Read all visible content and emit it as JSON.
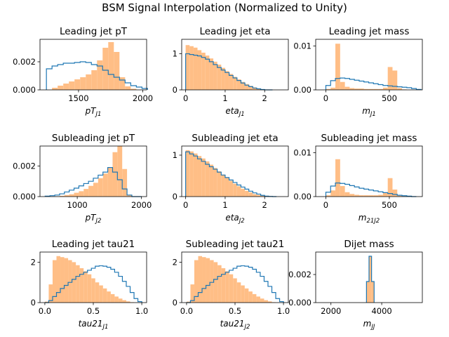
{
  "figure_title": "BSM Signal Interpolation (Normalized to Unity)",
  "colors": {
    "hist_fill": "#ffbe86",
    "step_line": "#1f77b4",
    "axis": "#000000"
  },
  "chart_data": [
    {
      "type": "histogram",
      "title": "Leading jet pT",
      "xlabel": "pT_J1",
      "xlim": [
        1200,
        2030
      ],
      "ylim": [
        0,
        0.0036
      ],
      "xticks": [
        1500,
        2000
      ],
      "yticks": [
        0,
        0.002
      ],
      "ytick_labels": [
        "0.000",
        "0.002"
      ],
      "bins": [
        1250,
        1293.75,
        1337.5,
        1381.25,
        1425,
        1468.75,
        1512.5,
        1556.25,
        1600,
        1643.75,
        1687.5,
        1731.25,
        1775,
        1818.75,
        1862.5,
        1906.25,
        1950,
        1993.75,
        2037.5
      ],
      "filled_values": [
        0.0,
        0.00015,
        0.0003,
        0.00045,
        0.0006,
        0.00075,
        0.0009,
        0.0011,
        0.0014,
        0.0021,
        0.003,
        0.0034,
        0.0027,
        0.0009,
        0.00025,
        8e-05,
        0.0,
        0.0
      ],
      "step_values": [
        0.0015,
        0.0017,
        0.0018,
        0.0019,
        0.0019,
        0.00195,
        0.002,
        0.00195,
        0.0018,
        0.0017,
        0.0014,
        0.0011,
        0.0009,
        0.0007,
        0.0005,
        0.0003,
        0.0002,
        0.0001
      ]
    },
    {
      "type": "histogram",
      "title": "Leading jet eta",
      "xlabel": "eta_J1",
      "xlim": [
        -0.1,
        2.6
      ],
      "ylim": [
        0,
        1.4
      ],
      "xticks": [
        0,
        1,
        2
      ],
      "yticks": [
        0,
        1
      ],
      "ytick_labels": [
        "0",
        "1"
      ],
      "bins": [
        0.0,
        0.1,
        0.2,
        0.3,
        0.4,
        0.5,
        0.6,
        0.7,
        0.8,
        0.9,
        1.0,
        1.1,
        1.2,
        1.3,
        1.4,
        1.5,
        1.6,
        1.7,
        1.8,
        1.9,
        2.0,
        2.1,
        2.2
      ],
      "filled_values": [
        1.24,
        1.21,
        1.17,
        1.1,
        1.03,
        0.95,
        0.87,
        0.78,
        0.7,
        0.61,
        0.52,
        0.44,
        0.36,
        0.29,
        0.22,
        0.16,
        0.11,
        0.07,
        0.04,
        0.02,
        0.01,
        0.0
      ],
      "step_values": [
        1.0,
        0.98,
        0.96,
        0.94,
        0.9,
        0.85,
        0.78,
        0.7,
        0.62,
        0.55,
        0.48,
        0.4,
        0.33,
        0.26,
        0.19,
        0.13,
        0.09,
        0.05,
        0.03,
        0.01,
        0.0,
        0.0
      ]
    },
    {
      "type": "histogram",
      "title": "Leading jet mass",
      "xlabel": "m_J1",
      "xlim": [
        -80,
        760
      ],
      "ylim": [
        0,
        0.0115
      ],
      "xticks": [
        0,
        500
      ],
      "yticks": [
        0,
        0.01
      ],
      "ytick_labels": [
        "0.00",
        "0.01"
      ],
      "bins": [
        0,
        37.5,
        75,
        112.5,
        150,
        187.5,
        225,
        262.5,
        300,
        337.5,
        375,
        412.5,
        450,
        487.5,
        525,
        562.5,
        600,
        637.5,
        675,
        712.5,
        750
      ],
      "filled_values": [
        0.0002,
        0.0005,
        0.0105,
        0.0018,
        0.0007,
        0.0004,
        0.0003,
        0.0003,
        0.0002,
        0.0002,
        0.0002,
        0.0002,
        0.0005,
        0.0052,
        0.0044,
        0.0004,
        0.0001,
        0.0,
        0.0,
        0.0
      ],
      "step_values": [
        0.001,
        0.0021,
        0.0026,
        0.0027,
        0.0026,
        0.0024,
        0.0022,
        0.002,
        0.0018,
        0.0016,
        0.0014,
        0.0012,
        0.001,
        0.0009,
        0.0008,
        0.0007,
        0.0006,
        0.0005,
        0.0003,
        0.0001
      ]
    },
    {
      "type": "histogram",
      "title": "Subleading jet pT",
      "xlabel": "pT_J2",
      "xlim": [
        420,
        2080
      ],
      "ylim": [
        0,
        0.0033
      ],
      "xticks": [
        1000,
        2000
      ],
      "yticks": [
        0,
        0.002
      ],
      "ytick_labels": [
        "0.000",
        "0.002"
      ],
      "bins": [
        500,
        575,
        650,
        725,
        800,
        875,
        950,
        1025,
        1100,
        1175,
        1250,
        1325,
        1400,
        1475,
        1550,
        1625,
        1700,
        1775,
        1850,
        1925,
        2000
      ],
      "filled_values": [
        0.0,
        0.0,
        2e-05,
        5e-05,
        0.0001,
        0.00015,
        0.00025,
        0.00035,
        0.0005,
        0.0007,
        0.0009,
        0.0012,
        0.0015,
        0.0019,
        0.0029,
        0.0033,
        0.0018,
        0.0001,
        0.0,
        0.0
      ],
      "step_values": [
        3e-05,
        6e-05,
        0.0001,
        0.00018,
        0.0003,
        0.00042,
        0.00055,
        0.0007,
        0.00085,
        0.001,
        0.0012,
        0.0014,
        0.0016,
        0.0019,
        0.0016,
        0.0011,
        0.0005,
        0.0001,
        0.0,
        0.0
      ]
    },
    {
      "type": "histogram",
      "title": "Subleading jet eta",
      "xlabel": "eta_J2",
      "xlim": [
        -0.1,
        2.6
      ],
      "ylim": [
        0,
        1.22
      ],
      "xticks": [
        0,
        1,
        2
      ],
      "yticks": [
        0,
        1
      ],
      "ytick_labels": [
        "0",
        "1"
      ],
      "bins": [
        0.0,
        0.1,
        0.2,
        0.3,
        0.4,
        0.5,
        0.6,
        0.7,
        0.8,
        0.9,
        1.0,
        1.1,
        1.2,
        1.3,
        1.4,
        1.5,
        1.6,
        1.7,
        1.8,
        1.9,
        2.0,
        2.1,
        2.2,
        2.3
      ],
      "filled_values": [
        1.12,
        1.09,
        1.04,
        0.98,
        0.92,
        0.85,
        0.77,
        0.69,
        0.61,
        0.53,
        0.45,
        0.38,
        0.31,
        0.25,
        0.19,
        0.14,
        0.1,
        0.06,
        0.04,
        0.02,
        0.01,
        0.0,
        0.0
      ],
      "step_values": [
        1.08,
        1.03,
        0.98,
        0.91,
        0.85,
        0.78,
        0.72,
        0.66,
        0.59,
        0.52,
        0.46,
        0.4,
        0.34,
        0.28,
        0.23,
        0.18,
        0.13,
        0.09,
        0.06,
        0.03,
        0.01,
        0.005,
        0.0
      ]
    },
    {
      "type": "histogram",
      "title": "Subleading jet mass",
      "xlabel": "m_21J2",
      "xlim": [
        -80,
        760
      ],
      "ylim": [
        0,
        0.0115
      ],
      "xticks": [
        0,
        500
      ],
      "yticks": [
        0,
        0.01
      ],
      "ytick_labels": [
        "0.00",
        "0.01"
      ],
      "bins": [
        0,
        37.5,
        75,
        112.5,
        150,
        187.5,
        225,
        262.5,
        300,
        337.5,
        375,
        412.5,
        450,
        487.5,
        525,
        562.5,
        600,
        637.5,
        675,
        712.5
      ],
      "filled_values": [
        0.0003,
        0.0014,
        0.0085,
        0.0024,
        0.001,
        0.0006,
        0.0004,
        0.0003,
        0.0003,
        0.0003,
        0.0003,
        0.0004,
        0.0008,
        0.0042,
        0.0016,
        0.0002,
        0.0001,
        0.0,
        0.0
      ],
      "step_values": [
        0.001,
        0.0024,
        0.0031,
        0.003,
        0.0028,
        0.0025,
        0.0022,
        0.0019,
        0.0017,
        0.0015,
        0.0013,
        0.0011,
        0.0009,
        0.0007,
        0.0005,
        0.0003,
        0.0002,
        0.0001,
        0.0
      ]
    },
    {
      "type": "histogram",
      "title": "Leading jet tau21",
      "xlabel": "tau21_J1",
      "xlim": [
        -0.05,
        1.05
      ],
      "ylim": [
        0,
        2.5
      ],
      "xticks": [
        0.0,
        0.5,
        1.0
      ],
      "xtick_labels": [
        "0.0",
        "0.5",
        "1.0"
      ],
      "yticks": [
        0,
        2
      ],
      "ytick_labels": [
        "0",
        "2"
      ],
      "bins": [
        0.0,
        0.04,
        0.08,
        0.12,
        0.16,
        0.2,
        0.24,
        0.28,
        0.32,
        0.36,
        0.4,
        0.44,
        0.48,
        0.52,
        0.56,
        0.6,
        0.64,
        0.68,
        0.72,
        0.76,
        0.8,
        0.84,
        0.88,
        0.92,
        0.96,
        1.0
      ],
      "filled_values": [
        0.05,
        0.9,
        2.1,
        2.3,
        2.25,
        2.2,
        2.1,
        2.0,
        1.85,
        1.7,
        1.55,
        1.4,
        1.2,
        1.0,
        0.85,
        0.7,
        0.55,
        0.42,
        0.3,
        0.2,
        0.12,
        0.06,
        0.02,
        0.0,
        0.0
      ],
      "step_values": [
        0.0,
        0.1,
        0.3,
        0.5,
        0.7,
        0.85,
        1.0,
        1.15,
        1.3,
        1.4,
        1.5,
        1.6,
        1.7,
        1.8,
        1.82,
        1.8,
        1.75,
        1.65,
        1.5,
        1.3,
        1.05,
        0.8,
        0.5,
        0.2,
        0.05
      ]
    },
    {
      "type": "histogram",
      "title": "Subleading jet tau21",
      "xlabel": "tau21_J2",
      "xlim": [
        -0.05,
        1.05
      ],
      "ylim": [
        0,
        2.5
      ],
      "xticks": [
        0.0,
        0.5,
        1.0
      ],
      "xtick_labels": [
        "0.0",
        "0.5",
        "1.0"
      ],
      "yticks": [
        0,
        2
      ],
      "ytick_labels": [
        "0",
        "2"
      ],
      "bins": [
        0.0,
        0.04,
        0.08,
        0.12,
        0.16,
        0.2,
        0.24,
        0.28,
        0.32,
        0.36,
        0.4,
        0.44,
        0.48,
        0.52,
        0.56,
        0.6,
        0.64,
        0.68,
        0.72,
        0.76,
        0.8,
        0.84,
        0.88,
        0.92,
        0.96,
        1.0
      ],
      "filled_values": [
        0.05,
        0.9,
        2.1,
        2.3,
        2.25,
        2.2,
        2.1,
        2.0,
        1.85,
        1.7,
        1.55,
        1.4,
        1.2,
        1.0,
        0.85,
        0.7,
        0.55,
        0.42,
        0.3,
        0.2,
        0.12,
        0.06,
        0.02,
        0.0,
        0.0
      ],
      "step_values": [
        0.0,
        0.1,
        0.3,
        0.5,
        0.7,
        0.85,
        1.0,
        1.15,
        1.3,
        1.4,
        1.5,
        1.6,
        1.7,
        1.8,
        1.82,
        1.8,
        1.75,
        1.65,
        1.5,
        1.3,
        1.05,
        0.8,
        0.5,
        0.2,
        0.05
      ]
    },
    {
      "type": "histogram",
      "title": "Dijet mass",
      "xlabel": "m_JJ",
      "xlim": [
        1400,
        5600
      ],
      "ylim": [
        0,
        0.0036
      ],
      "xticks": [
        2000,
        4000
      ],
      "yticks": [
        0,
        0.002
      ],
      "ytick_labels": [
        "0.000",
        "0.002"
      ],
      "bins": [
        3400,
        3500,
        3600,
        3700
      ],
      "filled_values": [
        0.0015,
        0.0033,
        0.0015
      ],
      "step_values": [
        0.0015,
        0.0033,
        0.0015
      ]
    }
  ]
}
